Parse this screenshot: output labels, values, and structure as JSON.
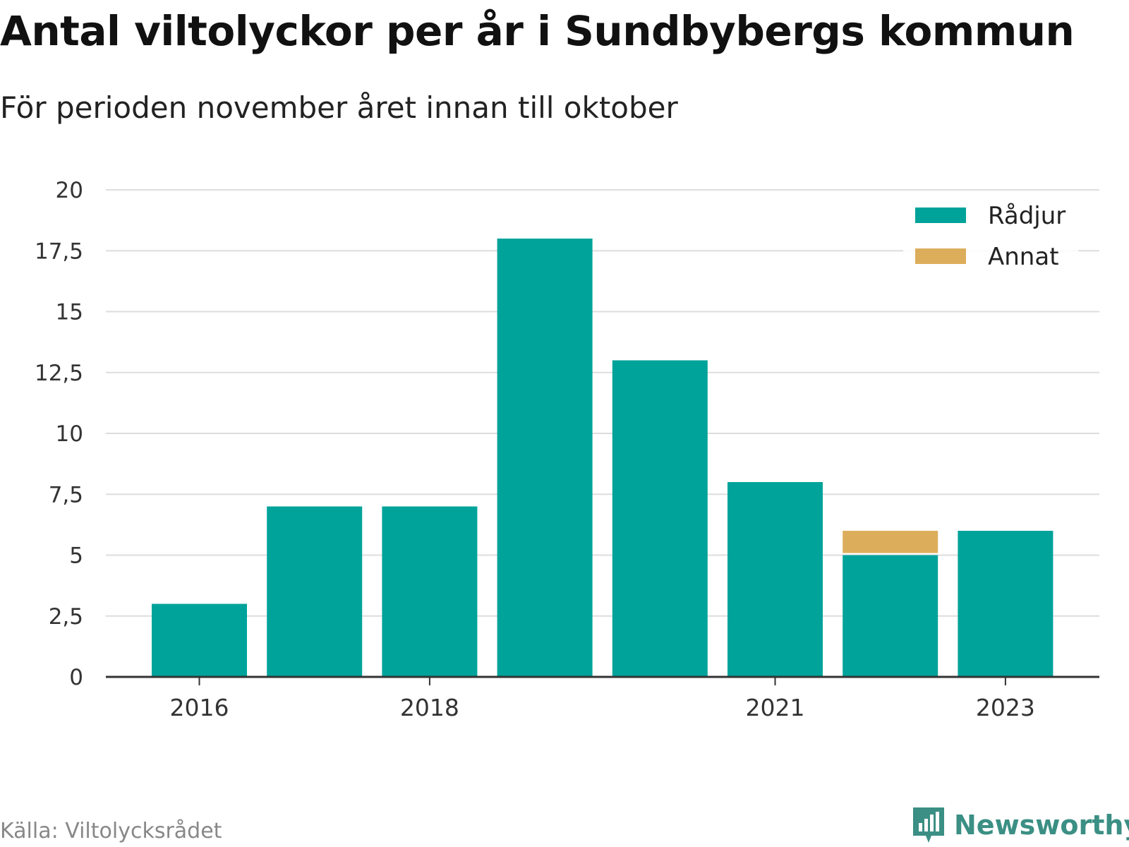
{
  "title": "Antal viltolyckor per år i Sundbybergs kommun",
  "subtitle": "För perioden november året innan till oktober",
  "source": "Källa: Viltolycksrådet",
  "brand": "Newsworthy",
  "colors": {
    "radjur": "#00a39a",
    "annat": "#dcae5c",
    "grid": "#dddddd",
    "axis": "#333333",
    "brand": "#3b8f84"
  },
  "chart_data": {
    "type": "bar",
    "stacked": true,
    "categories": [
      "2016",
      "2017",
      "2018",
      "2019",
      "2020",
      "2021",
      "2022",
      "2023"
    ],
    "xtick_labels": [
      "2016",
      "2018",
      "2021",
      "2023"
    ],
    "series": [
      {
        "name": "Rådjur",
        "values": [
          3,
          7,
          7,
          18,
          13,
          8,
          5,
          6
        ],
        "color": "#00a39a"
      },
      {
        "name": "Annat",
        "values": [
          0,
          0,
          0,
          0,
          0,
          0,
          1,
          0
        ],
        "color": "#dcae5c"
      }
    ],
    "yticks": [
      0,
      2.5,
      5,
      7.5,
      10,
      12.5,
      15,
      17.5,
      20
    ],
    "ytick_labels": [
      "0",
      "2,5",
      "5",
      "7,5",
      "10",
      "12,5",
      "15",
      "17,5",
      "20"
    ],
    "ylim": [
      0,
      20
    ],
    "grid": true,
    "legend": "top-right"
  }
}
